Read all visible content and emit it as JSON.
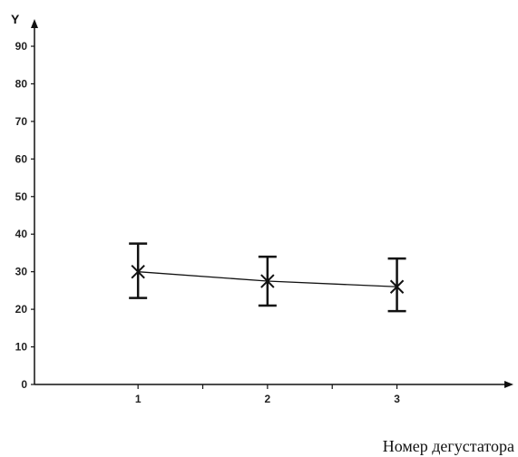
{
  "chart_data": {
    "type": "line",
    "title": "",
    "ylabel": "Y",
    "xlabel": "Номер дегустатора",
    "x": [
      1,
      2,
      3
    ],
    "xticks": [
      "1",
      "2",
      "3"
    ],
    "yticks": [
      "0",
      "10",
      "20",
      "30",
      "40",
      "50",
      "60",
      "70",
      "80",
      "90"
    ],
    "ylim": [
      0,
      97
    ],
    "xlim": [
      0.2,
      3.9
    ],
    "grid": false,
    "series": [
      {
        "values": [
          30,
          27.5,
          26
        ],
        "error_low": [
          23,
          21,
          19.5
        ],
        "error_high": [
          37.5,
          34,
          33.5
        ],
        "marker": "x"
      }
    ],
    "colors": {
      "line": "#111111",
      "axis": "#111111"
    }
  }
}
